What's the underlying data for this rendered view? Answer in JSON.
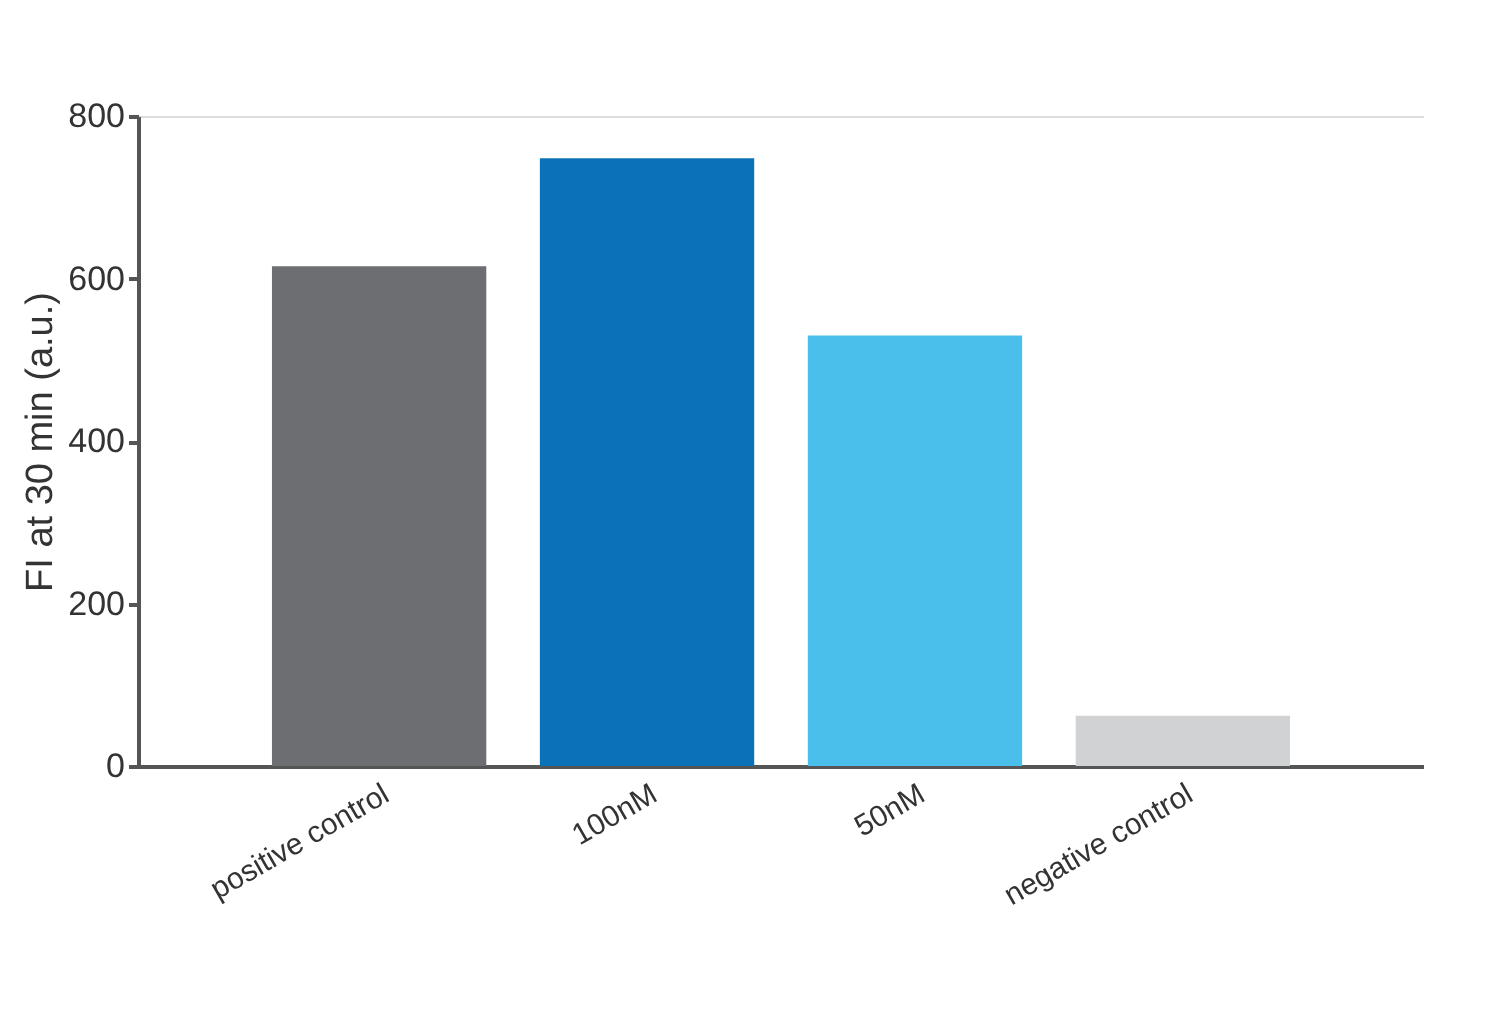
{
  "chart_data": {
    "type": "bar",
    "ylabel": "FI at 30 min (a.u.)",
    "categories": [
      "positive control",
      "100nM",
      "50nM",
      "negative control"
    ],
    "values": [
      615,
      748,
      530,
      62
    ],
    "colors": [
      "#6d6e71",
      "#0b72b9",
      "#4bbfec",
      "#d1d2d4"
    ],
    "ylim": [
      0,
      800
    ],
    "yticks": [
      0,
      200,
      400,
      600,
      800
    ],
    "grid": false,
    "legend": false
  }
}
